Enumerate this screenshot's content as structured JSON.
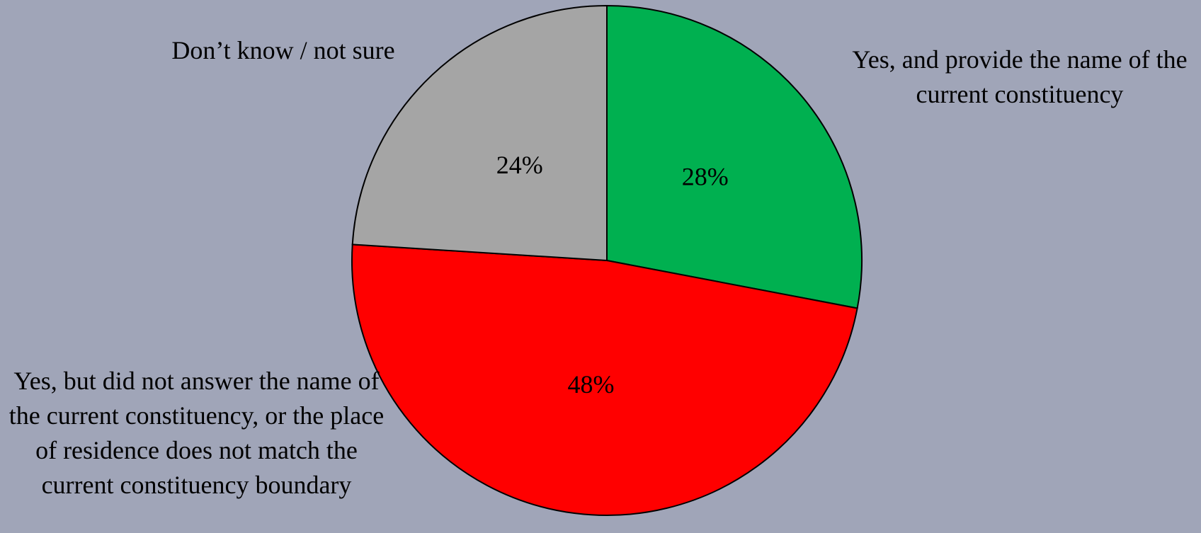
{
  "chart_data": {
    "type": "pie",
    "categories": [
      "Yes, and provide the name of the current constituency",
      "Yes, but did not answer the name of the current constituency, or the place of residence does not match the current constituency boundary",
      "Don’t know / not sure"
    ],
    "values": [
      28,
      48,
      24
    ],
    "value_labels": [
      "28%",
      "48%",
      "24%"
    ],
    "colors": [
      "#00b050",
      "#ff0000",
      "#a5a5a5"
    ]
  }
}
